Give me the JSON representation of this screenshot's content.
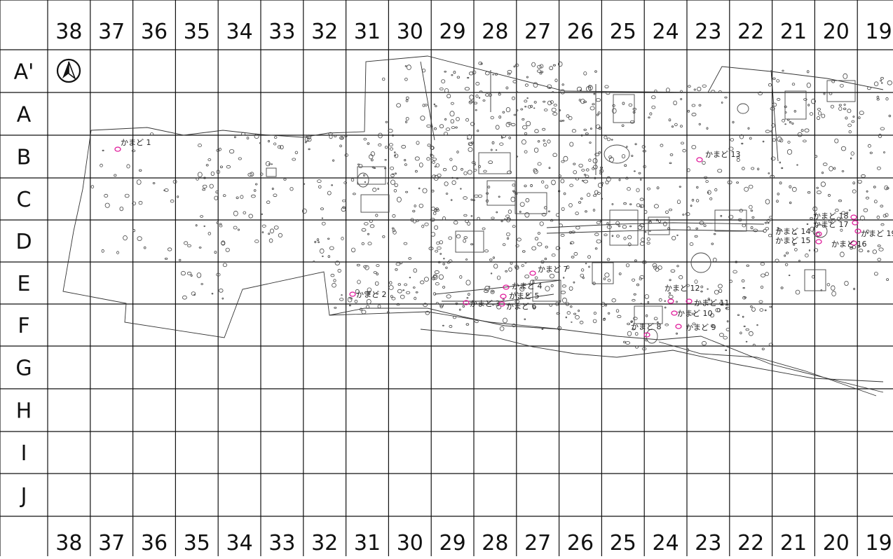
{
  "map": {
    "columns": [
      "38",
      "37",
      "36",
      "35",
      "34",
      "33",
      "32",
      "31",
      "30",
      "29",
      "28",
      "27",
      "26",
      "25",
      "24",
      "23",
      "22",
      "21",
      "20",
      "19"
    ],
    "rows": [
      "A'",
      "A",
      "B",
      "C",
      "D",
      "E",
      "F",
      "G",
      "H",
      "I",
      "J"
    ],
    "kamado_labels": [
      "かまど 1",
      "かまど 2",
      "かまど 3",
      "かまど 4",
      "かまど 5",
      "かまど 6",
      "かまど 7",
      "かまど 8",
      "かまど 9",
      "かまど 10",
      "かまど 11",
      "かまど 12",
      "かまど 13",
      "かまど 14",
      "かまど 15",
      "かまど 16",
      "かまど 17",
      "かまど 18",
      "かまど 19"
    ],
    "colors": {
      "grid": "#111111",
      "outline": "#333333",
      "feature": "#444444",
      "kamado": "#e0199a"
    }
  }
}
